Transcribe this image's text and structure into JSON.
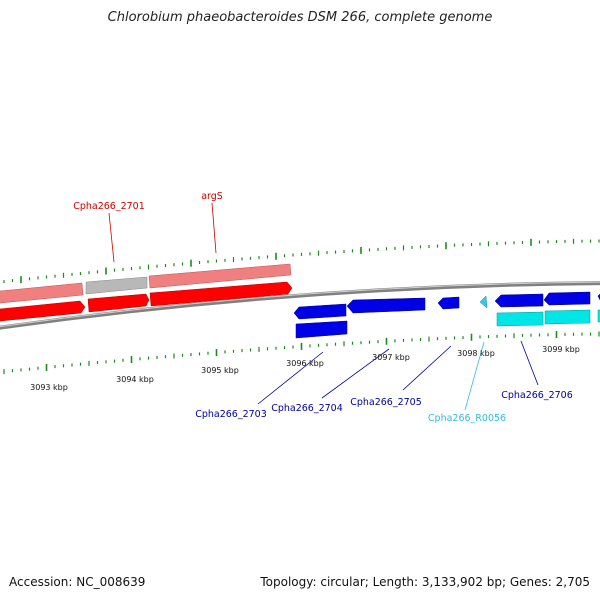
{
  "title": "Chlorobium phaeobacteroides DSM 266, complete genome",
  "footer": {
    "accession": "Accession: NC_008639",
    "summary": "Topology: circular; Length: 3,133,902 bp; Genes: 2,705"
  },
  "colors": {
    "forward_gene": "#ff0000",
    "forward_gene_light": "#f07f80",
    "pseudo_gene": "#b8b8b8",
    "reverse_gene": "#0000e6",
    "rna_gene": "#00e6e6",
    "backbone": "#808080",
    "tick": "#1a8a1a",
    "label_forward": "#cc0000",
    "label_reverse": "#000099",
    "label_rna": "#33bbdd"
  },
  "ruler": {
    "labels": [
      "3093 kbp",
      "3094 kbp",
      "3095 kbp",
      "3096 kbp",
      "3097 kbp",
      "3098 kbp",
      "3099 kbp"
    ]
  },
  "genes": {
    "forward": [
      {
        "name": "Cpha266_2701",
        "labeled": true
      },
      {
        "name": "argS",
        "labeled": true
      }
    ],
    "reverse": [
      {
        "name": "Cpha266_2703"
      },
      {
        "name": "Cpha266_2704"
      },
      {
        "name": "Cpha266_2705"
      },
      {
        "name": "Cpha266_R0056"
      },
      {
        "name": "Cpha266_2706"
      }
    ]
  }
}
